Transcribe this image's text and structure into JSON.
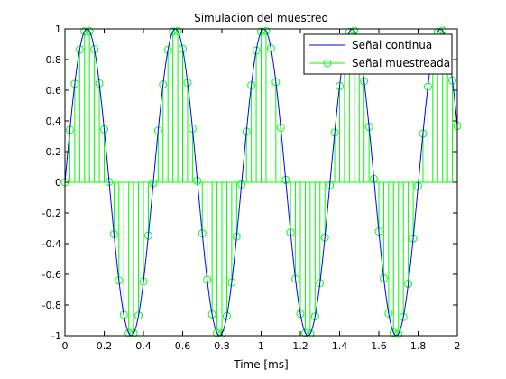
{
  "chart_data": {
    "type": "line",
    "title": "Simulacion del muestreo",
    "xlabel": "Time [ms]",
    "ylabel": "",
    "xlim": [
      0,
      2
    ],
    "ylim": [
      -1,
      1
    ],
    "xticks": [
      "0",
      "0.2",
      "0.4",
      "0.6",
      "0.8",
      "1",
      "1.2",
      "1.4",
      "1.6",
      "1.8",
      "2"
    ],
    "yticks": [
      "-1",
      "-0.8",
      "-0.6",
      "-0.4",
      "-0.2",
      "0",
      "0.2",
      "0.4",
      "0.6",
      "0.8",
      "1"
    ],
    "grid": false,
    "legend_position": "top-right",
    "series": [
      {
        "name": "Señal continua",
        "style": "line",
        "color": "#0000ff",
        "function": "sin",
        "frequency_khz": 2.22,
        "x_range": [
          0,
          2
        ]
      },
      {
        "name": "Señal muestreada",
        "style": "stem",
        "color": "#00ff00",
        "sample_period_ms": 0.025,
        "frequency_khz": 2.22,
        "x_range": [
          0,
          2
        ]
      }
    ]
  }
}
